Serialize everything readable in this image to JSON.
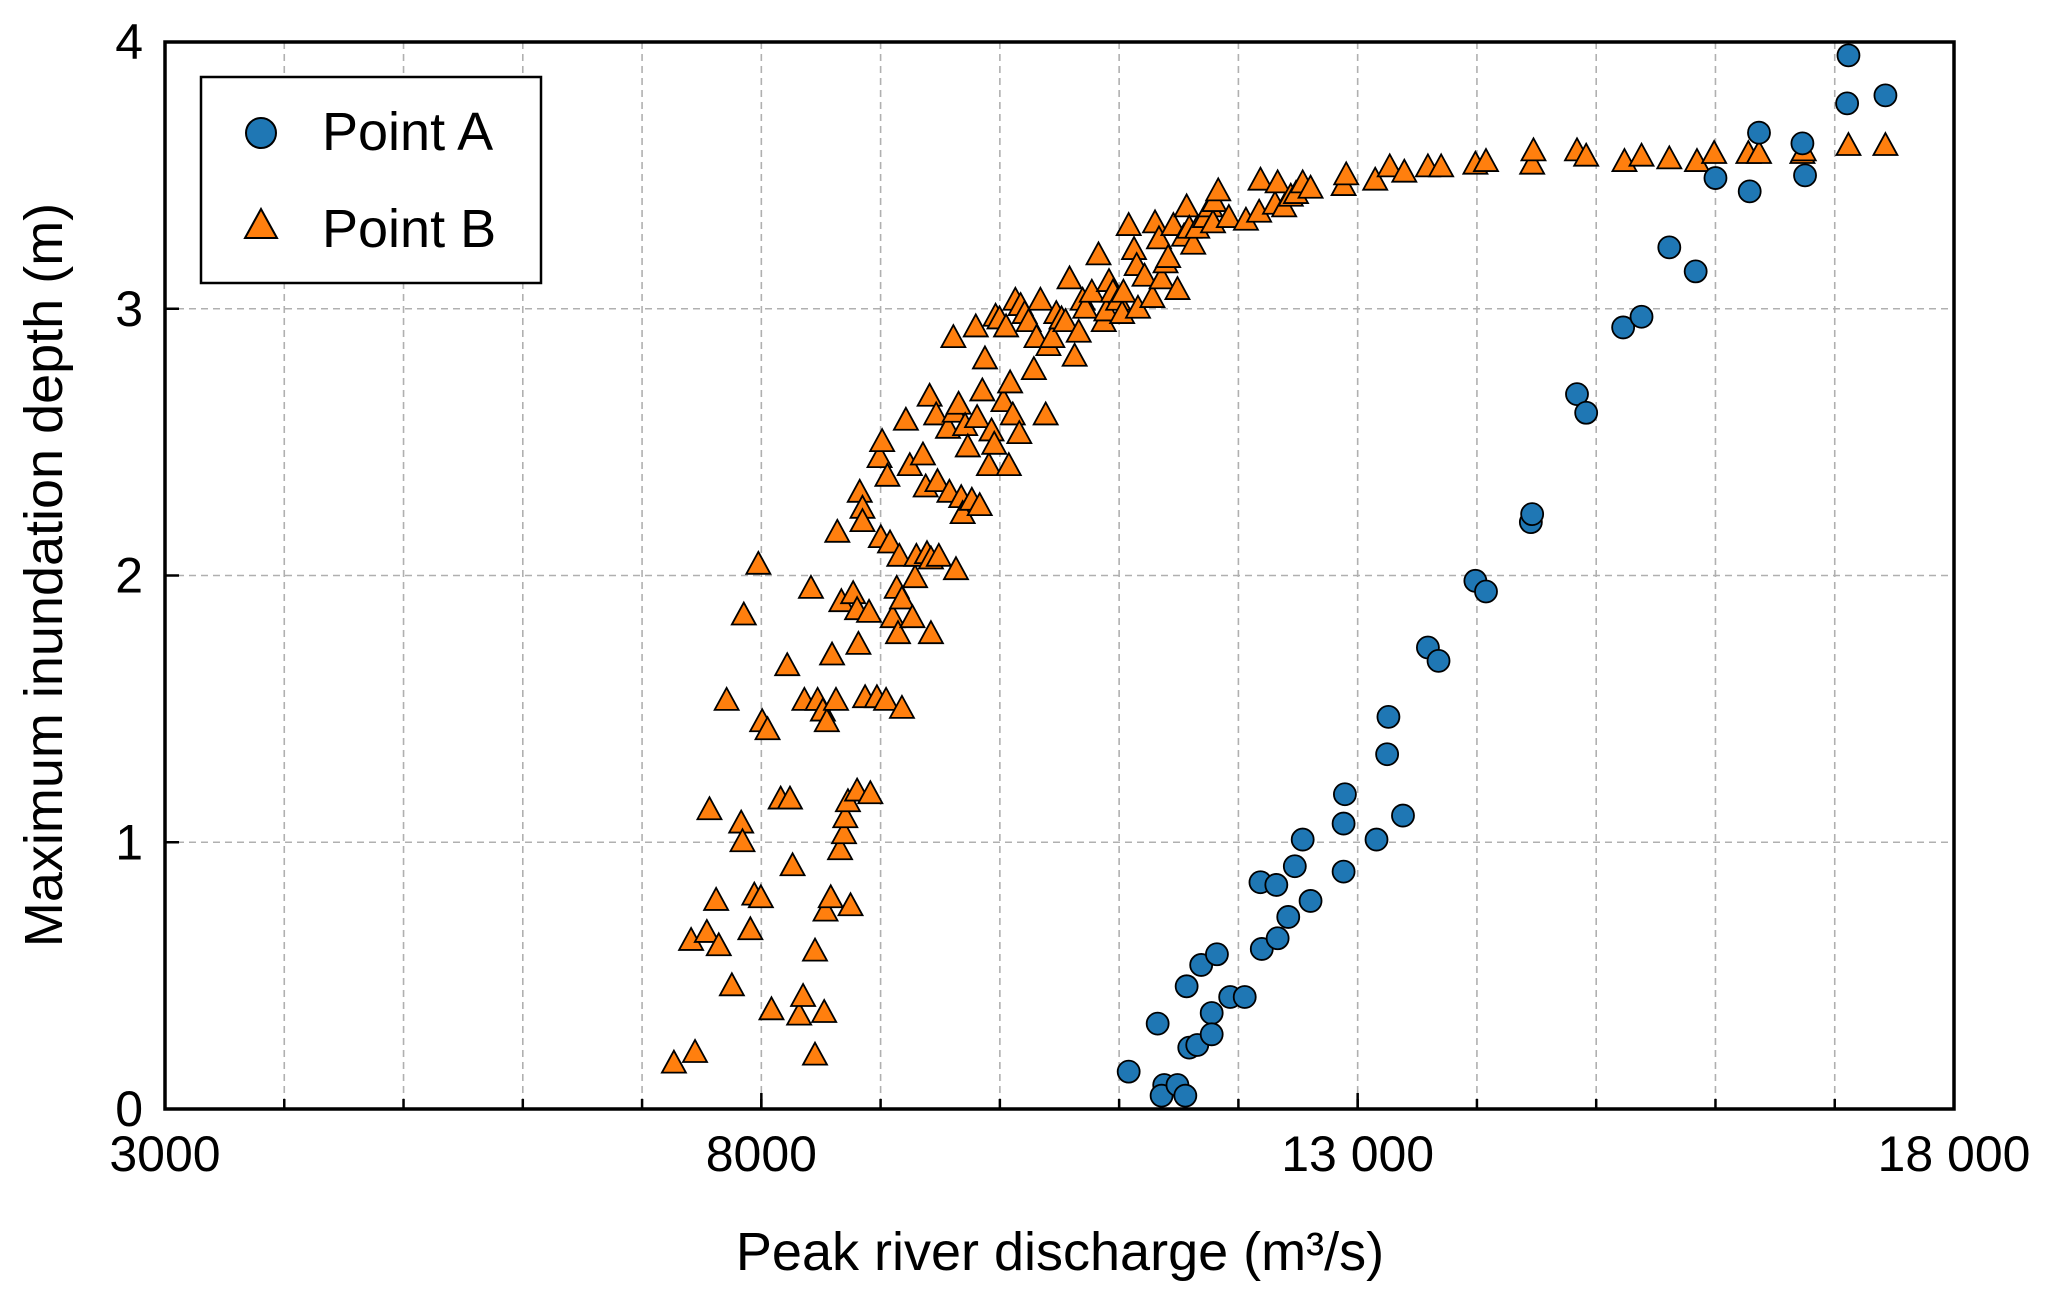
{
  "chart_data": {
    "type": "scatter",
    "xlabel": "Peak river discharge (m³/s)",
    "ylabel": "Maximum inundation depth (m)",
    "xlim": [
      3000,
      18000
    ],
    "ylim": [
      0,
      4
    ],
    "x_ticks": [
      3000,
      8000,
      13000,
      18000
    ],
    "x_tick_labels": [
      "3000",
      "8000",
      "13 000",
      "18 000"
    ],
    "y_ticks": [
      0,
      1,
      2,
      3,
      4
    ],
    "y_tick_labels": [
      "0",
      "1",
      "2",
      "3",
      "4"
    ],
    "grid": true,
    "legend_position": "top-left",
    "series": [
      {
        "name": "Point A",
        "marker": "circle",
        "color": "#1f77b4",
        "points": [
          [
            11080,
            0.14
          ],
          [
            11323,
            0.32
          ],
          [
            11378,
            0.09
          ],
          [
            11356,
            0.05
          ],
          [
            11489,
            0.09
          ],
          [
            11555,
            0.05
          ],
          [
            11566,
            0.46
          ],
          [
            11588,
            0.23
          ],
          [
            11655,
            0.24
          ],
          [
            11688,
            0.54
          ],
          [
            11776,
            0.36
          ],
          [
            11776,
            0.28
          ],
          [
            11820,
            0.58
          ],
          [
            11931,
            0.42
          ],
          [
            12053,
            0.42
          ],
          [
            12185,
            0.85
          ],
          [
            12196,
            0.6
          ],
          [
            12318,
            0.84
          ],
          [
            12329,
            0.64
          ],
          [
            12418,
            0.72
          ],
          [
            12473,
            0.91
          ],
          [
            12539,
            1.01
          ],
          [
            12605,
            0.78
          ],
          [
            12882,
            0.89
          ],
          [
            12882,
            1.07
          ],
          [
            12893,
            1.18
          ],
          [
            13158,
            1.01
          ],
          [
            13247,
            1.33
          ],
          [
            13258,
            1.47
          ],
          [
            13380,
            1.1
          ],
          [
            13589,
            1.73
          ],
          [
            13678,
            1.68
          ],
          [
            13987,
            1.98
          ],
          [
            14076,
            1.94
          ],
          [
            14452,
            2.2
          ],
          [
            14463,
            2.23
          ],
          [
            14839,
            2.68
          ],
          [
            14916,
            2.61
          ],
          [
            15226,
            2.93
          ],
          [
            15380,
            2.97
          ],
          [
            15613,
            3.23
          ],
          [
            15834,
            3.14
          ],
          [
            16000,
            3.49
          ],
          [
            16287,
            3.44
          ],
          [
            16365,
            3.66
          ],
          [
            16729,
            3.62
          ],
          [
            16751,
            3.5
          ],
          [
            17104,
            3.77
          ],
          [
            17115,
            3.95
          ],
          [
            17425,
            3.8
          ]
        ]
      },
      {
        "name": "Point B",
        "marker": "triangle",
        "color": "#ff7f0e",
        "points": [
          [
            7267,
            0.17
          ],
          [
            7444,
            0.21
          ],
          [
            7411,
            0.63
          ],
          [
            7543,
            0.66
          ],
          [
            7565,
            1.12
          ],
          [
            7621,
            0.78
          ],
          [
            7643,
            0.61
          ],
          [
            7709,
            1.53
          ],
          [
            7753,
            0.46
          ],
          [
            7831,
            1.07
          ],
          [
            7842,
            1.0
          ],
          [
            7853,
            1.85
          ],
          [
            7908,
            0.67
          ],
          [
            7941,
            0.8
          ],
          [
            7975,
            2.04
          ],
          [
            7996,
            0.79
          ],
          [
            8007,
            1.45
          ],
          [
            8052,
            1.42
          ],
          [
            8085,
            0.37
          ],
          [
            8162,
            1.16
          ],
          [
            8217,
            1.66
          ],
          [
            8240,
            1.16
          ],
          [
            8262,
            0.91
          ],
          [
            8317,
            0.35
          ],
          [
            8350,
            0.42
          ],
          [
            8361,
            1.53
          ],
          [
            8416,
            1.95
          ],
          [
            8450,
            0.59
          ],
          [
            8450,
            0.2
          ],
          [
            8472,
            1.53
          ],
          [
            8516,
            1.49
          ],
          [
            8527,
            0.36
          ],
          [
            8538,
            0.74
          ],
          [
            8549,
            1.45
          ],
          [
            8582,
            0.79
          ],
          [
            8593,
            1.7
          ],
          [
            8626,
            1.53
          ],
          [
            8637,
            2.16
          ],
          [
            8660,
            0.97
          ],
          [
            8671,
            1.9
          ],
          [
            8693,
            1.03
          ],
          [
            8704,
            1.09
          ],
          [
            8726,
            1.15
          ],
          [
            8748,
            0.76
          ],
          [
            8770,
            1.93
          ],
          [
            8803,
            1.19
          ],
          [
            8803,
            1.87
          ],
          [
            8814,
            1.74
          ],
          [
            8825,
            2.31
          ],
          [
            8848,
            2.25
          ],
          [
            8848,
            2.2
          ],
          [
            8870,
            1.54
          ],
          [
            8903,
            1.86
          ],
          [
            8914,
            1.18
          ],
          [
            8969,
            1.54
          ],
          [
            8991,
            2.44
          ],
          [
            9002,
            2.14
          ],
          [
            9013,
            2.5
          ],
          [
            9046,
            1.53
          ],
          [
            9057,
            2.37
          ],
          [
            9079,
            2.12
          ],
          [
            9101,
            1.84
          ],
          [
            9135,
            1.95
          ],
          [
            9146,
            1.78
          ],
          [
            9157,
            2.07
          ],
          [
            9179,
            1.91
          ],
          [
            9179,
            1.5
          ],
          [
            9212,
            2.58
          ],
          [
            9245,
            2.41
          ],
          [
            9267,
            1.84
          ],
          [
            9289,
            1.99
          ],
          [
            9300,
            2.07
          ],
          [
            9355,
            2.45
          ],
          [
            9378,
            2.33
          ],
          [
            9389,
            2.08
          ],
          [
            9411,
            2.67
          ],
          [
            9422,
            2.06
          ],
          [
            9422,
            1.78
          ],
          [
            9466,
            2.6
          ],
          [
            9477,
            2.35
          ],
          [
            9488,
            2.07
          ],
          [
            9565,
            2.55
          ],
          [
            9577,
            2.31
          ],
          [
            9610,
            2.89
          ],
          [
            9621,
            2.61
          ],
          [
            9632,
            2.02
          ],
          [
            9654,
            2.64
          ],
          [
            9676,
            2.29
          ],
          [
            9688,
            2.23
          ],
          [
            9709,
            2.56
          ],
          [
            9731,
            2.48
          ],
          [
            9765,
            2.28
          ],
          [
            9798,
            2.93
          ],
          [
            9809,
            2.59
          ],
          [
            9831,
            2.26
          ],
          [
            9853,
            2.69
          ],
          [
            9875,
            2.81
          ],
          [
            9908,
            2.41
          ],
          [
            9930,
            2.54
          ],
          [
            9953,
            2.49
          ],
          [
            9964,
            2.97
          ],
          [
            9997,
            2.96
          ],
          [
            10030,
            2.65
          ],
          [
            10052,
            2.93
          ],
          [
            10075,
            2.41
          ],
          [
            10086,
            2.72
          ],
          [
            10108,
            2.6
          ],
          [
            10130,
            3.03
          ],
          [
            10163,
            2.53
          ],
          [
            10174,
            3.01
          ],
          [
            10208,
            2.98
          ],
          [
            10241,
            2.95
          ],
          [
            10285,
            2.77
          ],
          [
            10307,
            2.89
          ],
          [
            10340,
            3.03
          ],
          [
            10384,
            2.6
          ],
          [
            10407,
            2.86
          ],
          [
            10440,
            2.89
          ],
          [
            10473,
            2.98
          ],
          [
            10517,
            2.96
          ],
          [
            10550,
            2.95
          ],
          [
            10584,
            3.11
          ],
          [
            10627,
            2.82
          ],
          [
            10661,
            2.91
          ],
          [
            10694,
            3.03
          ],
          [
            10716,
            3.0
          ],
          [
            10771,
            3.06
          ],
          [
            10827,
            3.2
          ],
          [
            10871,
            2.95
          ],
          [
            10893,
            2.99
          ],
          [
            10915,
            3.1
          ],
          [
            10948,
            3.06
          ],
          [
            10992,
            3.03
          ],
          [
            11025,
            2.98
          ],
          [
            11036,
            3.06
          ],
          [
            11080,
            3.31
          ],
          [
            11125,
            3.22
          ],
          [
            11147,
            3.16
          ],
          [
            11158,
            3.0
          ],
          [
            11213,
            3.12
          ],
          [
            11279,
            3.04
          ],
          [
            11301,
            3.32
          ],
          [
            11334,
            3.26
          ],
          [
            11356,
            3.11
          ],
          [
            11389,
            3.17
          ],
          [
            11411,
            3.19
          ],
          [
            11455,
            3.31
          ],
          [
            11489,
            3.07
          ],
          [
            11544,
            3.27
          ],
          [
            11566,
            3.38
          ],
          [
            11588,
            3.3
          ],
          [
            11621,
            3.24
          ],
          [
            11655,
            3.3
          ],
          [
            11721,
            3.34
          ],
          [
            11765,
            3.38
          ],
          [
            11787,
            3.32
          ],
          [
            11798,
            3.4
          ],
          [
            11831,
            3.44
          ],
          [
            11920,
            3.34
          ],
          [
            12063,
            3.33
          ],
          [
            12174,
            3.36
          ],
          [
            12185,
            3.48
          ],
          [
            12307,
            3.39
          ],
          [
            12329,
            3.47
          ],
          [
            12384,
            3.38
          ],
          [
            12439,
            3.42
          ],
          [
            12483,
            3.43
          ],
          [
            12539,
            3.47
          ],
          [
            12605,
            3.45
          ],
          [
            12882,
            3.46
          ],
          [
            12904,
            3.5
          ],
          [
            13147,
            3.48
          ],
          [
            13269,
            3.53
          ],
          [
            13391,
            3.51
          ],
          [
            13589,
            3.53
          ],
          [
            13700,
            3.53
          ],
          [
            13987,
            3.54
          ],
          [
            14076,
            3.55
          ],
          [
            14463,
            3.54
          ],
          [
            14474,
            3.59
          ],
          [
            14839,
            3.59
          ],
          [
            14916,
            3.57
          ],
          [
            15237,
            3.55
          ],
          [
            15380,
            3.57
          ],
          [
            15613,
            3.56
          ],
          [
            15845,
            3.55
          ],
          [
            15989,
            3.58
          ],
          [
            16276,
            3.58
          ],
          [
            16365,
            3.58
          ],
          [
            16729,
            3.58
          ],
          [
            16740,
            3.59
          ],
          [
            17115,
            3.61
          ],
          [
            17425,
            3.61
          ]
        ]
      }
    ]
  }
}
